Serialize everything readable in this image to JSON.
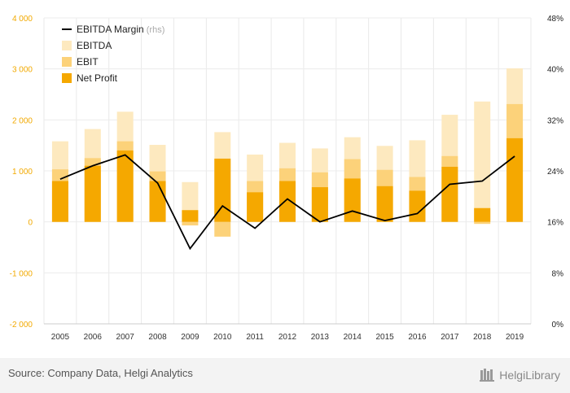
{
  "chart_data": {
    "type": "bar",
    "stacked": "overlay",
    "categories": [
      "2005",
      "2006",
      "2007",
      "2008",
      "2009",
      "2010",
      "2011",
      "2012",
      "2013",
      "2014",
      "2015",
      "2016",
      "2017",
      "2018",
      "2019"
    ],
    "series": [
      {
        "name": "EBITDA",
        "axis": "left",
        "color": "#fde9bf",
        "values": [
          1580,
          1820,
          2160,
          1510,
          780,
          1760,
          1320,
          1550,
          1440,
          1660,
          1490,
          1600,
          2100,
          2360,
          3010
        ]
      },
      {
        "name": "EBIT",
        "axis": "left",
        "color": "#fcd27a",
        "values": [
          1030,
          1250,
          1580,
          990,
          -70,
          -290,
          800,
          1050,
          970,
          1230,
          1020,
          880,
          1290,
          -40,
          2310
        ]
      },
      {
        "name": "Net Profit",
        "axis": "left",
        "color": "#f5a800",
        "values": [
          800,
          1100,
          1400,
          800,
          230,
          1240,
          580,
          800,
          680,
          850,
          700,
          610,
          1080,
          270,
          1640
        ]
      },
      {
        "name": "EBITDA Margin",
        "suffix": "(rhs)",
        "axis": "right",
        "type": "line",
        "color": "#000000",
        "values": [
          22.7,
          24.8,
          26.5,
          22.1,
          11.8,
          18.5,
          15.0,
          19.6,
          16.0,
          17.7,
          16.2,
          17.3,
          21.9,
          22.4,
          26.3
        ]
      }
    ],
    "y_left": {
      "ticks": [
        "-2 000",
        "-1 000",
        "0",
        "1 000",
        "2 000",
        "3 000",
        "4 000"
      ],
      "ylim": [
        -2000,
        4000
      ]
    },
    "y_right": {
      "ticks": [
        "0%",
        "8%",
        "16%",
        "24%",
        "32%",
        "40%",
        "48%"
      ],
      "ylim": [
        0,
        48
      ]
    },
    "legend_order": [
      "EBITDA Margin",
      "EBITDA",
      "EBIT",
      "Net Profit"
    ],
    "legend_position": "top-left",
    "grid": true
  },
  "footer": {
    "source": "Source: Company Data, Helgi Analytics",
    "logo_text": "HelgiLibrary"
  }
}
